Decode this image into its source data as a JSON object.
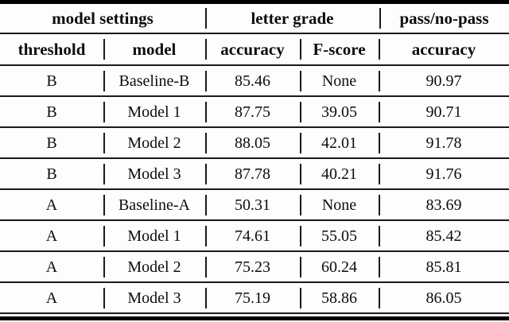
{
  "table": {
    "header_groups": [
      {
        "label": "model settings"
      },
      {
        "label": "letter grade"
      },
      {
        "label": "pass/no-pass"
      }
    ],
    "columns": [
      {
        "label": "threshold"
      },
      {
        "label": "model"
      },
      {
        "label": "accuracy"
      },
      {
        "label": "F-score"
      },
      {
        "label": "accuracy"
      }
    ],
    "rows": [
      {
        "threshold": "B",
        "model": "Baseline-B",
        "letter_accuracy": "85.46",
        "f_score": "None",
        "pass_accuracy": "90.97"
      },
      {
        "threshold": "B",
        "model": "Model 1",
        "letter_accuracy": "87.75",
        "f_score": "39.05",
        "pass_accuracy": "90.71"
      },
      {
        "threshold": "B",
        "model": "Model 2",
        "letter_accuracy": "88.05",
        "f_score": "42.01",
        "pass_accuracy": "91.78"
      },
      {
        "threshold": "B",
        "model": "Model 3",
        "letter_accuracy": "87.78",
        "f_score": "40.21",
        "pass_accuracy": "91.76"
      },
      {
        "threshold": "A",
        "model": "Baseline-A",
        "letter_accuracy": "50.31",
        "f_score": "None",
        "pass_accuracy": "83.69"
      },
      {
        "threshold": "A",
        "model": "Model 1",
        "letter_accuracy": "74.61",
        "f_score": "55.05",
        "pass_accuracy": "85.42"
      },
      {
        "threshold": "A",
        "model": "Model 2",
        "letter_accuracy": "75.23",
        "f_score": "60.24",
        "pass_accuracy": "85.81"
      },
      {
        "threshold": "A",
        "model": "Model 3",
        "letter_accuracy": "75.19",
        "f_score": "58.86",
        "pass_accuracy": "86.05"
      }
    ],
    "colors": {
      "text": "#0d0d0d",
      "rule": "#000000",
      "background": "#fdfdfd"
    }
  }
}
